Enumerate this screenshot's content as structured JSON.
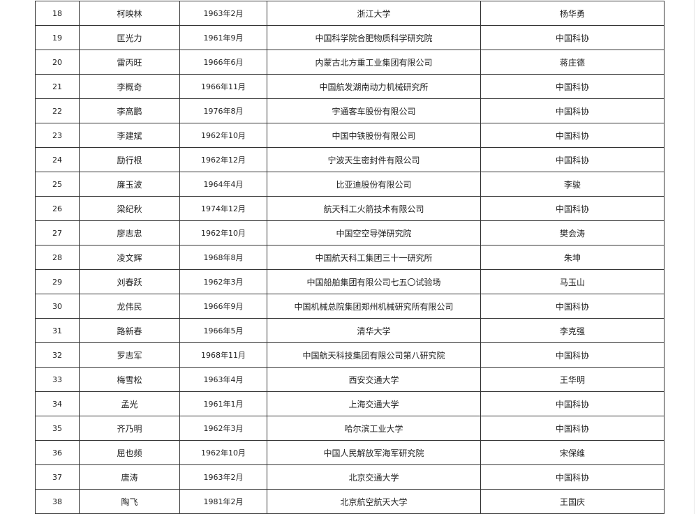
{
  "table": {
    "rows": [
      {
        "no": "18",
        "name": "柯映林",
        "birth": "1963年2月",
        "org": "浙江大学",
        "nominator": "杨华勇"
      },
      {
        "no": "19",
        "name": "匡光力",
        "birth": "1961年9月",
        "org": "中国科学院合肥物质科学研究院",
        "nominator": "中国科协"
      },
      {
        "no": "20",
        "name": "雷丙旺",
        "birth": "1966年6月",
        "org": "内蒙古北方重工业集团有限公司",
        "nominator": "蒋庄德"
      },
      {
        "no": "21",
        "name": "李概奇",
        "birth": "1966年11月",
        "org": "中国航发湖南动力机械研究所",
        "nominator": "中国科协"
      },
      {
        "no": "22",
        "name": "李高鹏",
        "birth": "1976年8月",
        "org": "宇通客车股份有限公司",
        "nominator": "中国科协"
      },
      {
        "no": "23",
        "name": "李建斌",
        "birth": "1962年10月",
        "org": "中国中铁股份有限公司",
        "nominator": "中国科协"
      },
      {
        "no": "24",
        "name": "励行根",
        "birth": "1962年12月",
        "org": "宁波天生密封件有限公司",
        "nominator": "中国科协"
      },
      {
        "no": "25",
        "name": "廉玉波",
        "birth": "1964年4月",
        "org": "比亚迪股份有限公司",
        "nominator": "李骏"
      },
      {
        "no": "26",
        "name": "梁纪秋",
        "birth": "1974年12月",
        "org": "航天科工火箭技术有限公司",
        "nominator": "中国科协"
      },
      {
        "no": "27",
        "name": "廖志忠",
        "birth": "1962年10月",
        "org": "中国空空导弹研究院",
        "nominator": "樊会涛"
      },
      {
        "no": "28",
        "name": "凌文辉",
        "birth": "1968年8月",
        "org": "中国航天科工集团三十一研究所",
        "nominator": "朱坤"
      },
      {
        "no": "29",
        "name": "刘春跃",
        "birth": "1962年3月",
        "org": "中国船舶集团有限公司七五〇试验场",
        "nominator": "马玉山"
      },
      {
        "no": "30",
        "name": "龙伟民",
        "birth": "1966年9月",
        "org": "中国机械总院集团郑州机械研究所有限公司",
        "nominator": "中国科协"
      },
      {
        "no": "31",
        "name": "路新春",
        "birth": "1966年5月",
        "org": "清华大学",
        "nominator": "李克强"
      },
      {
        "no": "32",
        "name": "罗志军",
        "birth": "1968年11月",
        "org": "中国航天科技集团有限公司第八研究院",
        "nominator": "中国科协"
      },
      {
        "no": "33",
        "name": "梅雪松",
        "birth": "1963年4月",
        "org": "西安交通大学",
        "nominator": "王华明"
      },
      {
        "no": "34",
        "name": "孟光",
        "birth": "1961年1月",
        "org": "上海交通大学",
        "nominator": "中国科协"
      },
      {
        "no": "35",
        "name": "齐乃明",
        "birth": "1962年3月",
        "org": "哈尔滨工业大学",
        "nominator": "中国科协"
      },
      {
        "no": "36",
        "name": "屈也频",
        "birth": "1962年10月",
        "org": "中国人民解放军海军研究院",
        "nominator": "宋保维"
      },
      {
        "no": "37",
        "name": "唐涛",
        "birth": "1963年2月",
        "org": "北京交通大学",
        "nominator": "中国科协"
      },
      {
        "no": "38",
        "name": "陶飞",
        "birth": "1981年2月",
        "org": "北京航空航天大学",
        "nominator": "王国庆"
      }
    ]
  }
}
